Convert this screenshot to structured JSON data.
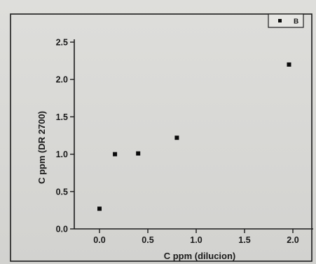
{
  "chart_data": {
    "type": "scatter",
    "title": "",
    "xlabel": "C ppm (dilucion)",
    "ylabel": "C ppm (DR 2700)",
    "xlim": [
      -0.15,
      2.15
    ],
    "ylim": [
      0.0,
      2.5
    ],
    "x_ticks": [
      "0.0",
      "0.5",
      "1.0",
      "1.5",
      "2.0"
    ],
    "y_ticks": [
      "0.0",
      "0.5",
      "1.0",
      "1.5",
      "2.0",
      "2.5"
    ],
    "grid": false,
    "legend_position": "top-right",
    "series": [
      {
        "name": "B",
        "color": "#0a0a0a",
        "marker": "square",
        "x": [
          0.0,
          0.16,
          0.4,
          0.8,
          1.96
        ],
        "y": [
          0.27,
          1.0,
          1.01,
          1.22,
          2.2
        ]
      }
    ]
  }
}
